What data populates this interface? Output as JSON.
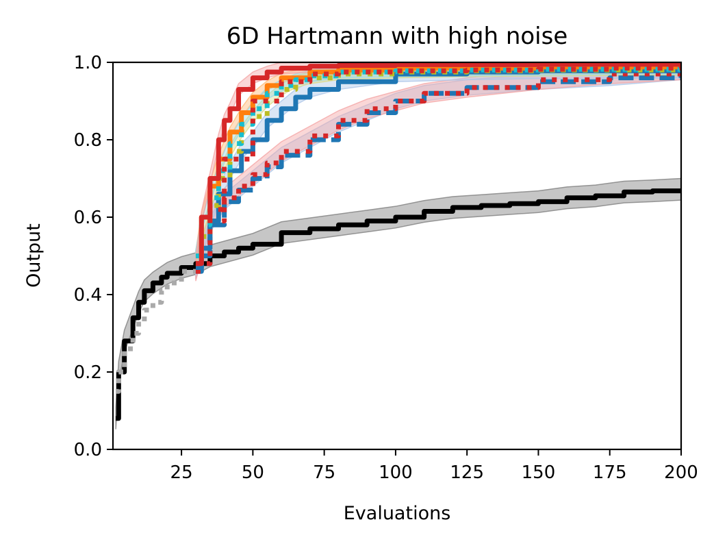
{
  "chart_data": {
    "type": "line",
    "title": "6D Hartmann with high noise",
    "xlabel": "Evaluations",
    "ylabel": "Output",
    "xlim": [
      1,
      200
    ],
    "ylim": [
      0.0,
      1.0
    ],
    "xticks": [
      25,
      50,
      75,
      100,
      125,
      150,
      175,
      200
    ],
    "yticks": [
      0.0,
      0.2,
      0.4,
      0.6,
      0.8,
      1.0
    ],
    "grid": false,
    "legend": "none",
    "series": [
      {
        "color": "#000000",
        "style": "solid",
        "band_color": "#808080",
        "x": [
          2,
          3,
          5,
          8,
          10,
          12,
          15,
          18,
          20,
          25,
          30,
          35,
          40,
          45,
          50,
          60,
          70,
          80,
          90,
          100,
          110,
          120,
          130,
          140,
          150,
          160,
          170,
          180,
          190,
          200
        ],
        "y": [
          0.08,
          0.2,
          0.28,
          0.34,
          0.38,
          0.41,
          0.43,
          0.445,
          0.455,
          0.47,
          0.48,
          0.5,
          0.51,
          0.52,
          0.53,
          0.56,
          0.57,
          0.58,
          0.59,
          0.6,
          0.615,
          0.625,
          0.63,
          0.635,
          0.64,
          0.65,
          0.655,
          0.665,
          0.668,
          0.672
        ],
        "band": 0.028
      },
      {
        "color": "#aaaaaa",
        "style": "dotted",
        "x": [
          2,
          3,
          5,
          8,
          10,
          12,
          15,
          18,
          20,
          25,
          30
        ],
        "y": [
          0.15,
          0.2,
          0.26,
          0.3,
          0.33,
          0.36,
          0.38,
          0.41,
          0.43,
          0.46,
          0.48
        ]
      },
      {
        "color": "#1f77b4",
        "style": "dashed",
        "band_color": "#aec7e8",
        "x": [
          30,
          32,
          35,
          40,
          45,
          50,
          55,
          60,
          70,
          80,
          90,
          100,
          110,
          125,
          150,
          175,
          200
        ],
        "y": [
          0.46,
          0.5,
          0.58,
          0.64,
          0.67,
          0.7,
          0.73,
          0.76,
          0.8,
          0.84,
          0.87,
          0.9,
          0.92,
          0.935,
          0.95,
          0.96,
          0.975
        ],
        "band": 0.02
      },
      {
        "color": "#d62728",
        "style": "dotted",
        "band_color": "#f4a6a6",
        "x": [
          30,
          32,
          35,
          40,
          45,
          50,
          55,
          60,
          70,
          80,
          90,
          100,
          110,
          125,
          150,
          175,
          200
        ],
        "y": [
          0.46,
          0.52,
          0.59,
          0.65,
          0.68,
          0.71,
          0.74,
          0.77,
          0.81,
          0.85,
          0.88,
          0.9,
          0.92,
          0.935,
          0.955,
          0.97,
          0.98
        ],
        "band": 0.025
      },
      {
        "color": "#1f77b4",
        "style": "solid",
        "band_color": "#aec7e8",
        "x": [
          30,
          32,
          35,
          38,
          42,
          46,
          50,
          55,
          60,
          65,
          70,
          80,
          100,
          125,
          150,
          200
        ],
        "y": [
          0.47,
          0.52,
          0.59,
          0.66,
          0.72,
          0.77,
          0.8,
          0.85,
          0.88,
          0.91,
          0.93,
          0.95,
          0.97,
          0.975,
          0.978,
          0.98
        ],
        "band": 0.02
      },
      {
        "color": "#bcbd22",
        "style": "dotted",
        "band_color": "#dbdb8d",
        "x": [
          30,
          32,
          35,
          38,
          42,
          46,
          50,
          55,
          60,
          65,
          70,
          80,
          100,
          125,
          150,
          200
        ],
        "y": [
          0.48,
          0.55,
          0.63,
          0.7,
          0.77,
          0.82,
          0.86,
          0.9,
          0.93,
          0.95,
          0.96,
          0.97,
          0.975,
          0.978,
          0.98,
          0.982
        ],
        "band": 0.015
      },
      {
        "color": "#ff7f0e",
        "style": "solid",
        "band_color": "#ffbb78",
        "x": [
          30,
          32,
          35,
          38,
          42,
          46,
          50,
          55,
          60,
          70,
          80,
          100,
          150,
          200
        ],
        "y": [
          0.5,
          0.6,
          0.68,
          0.75,
          0.82,
          0.87,
          0.91,
          0.94,
          0.96,
          0.975,
          0.98,
          0.985,
          0.988,
          0.99
        ],
        "band": 0.012
      },
      {
        "color": "#17becf",
        "style": "dotted",
        "band_color": "#9edae5",
        "x": [
          30,
          32,
          35,
          38,
          42,
          46,
          50,
          55,
          60,
          65,
          70,
          80,
          100,
          125,
          150,
          200
        ],
        "y": [
          0.5,
          0.58,
          0.65,
          0.72,
          0.79,
          0.84,
          0.88,
          0.92,
          0.94,
          0.955,
          0.965,
          0.975,
          0.978,
          0.98,
          0.982,
          0.985
        ],
        "band": 0.015
      },
      {
        "color": "#d62728",
        "style": "solid",
        "band_color": "#f4a6a6",
        "x": [
          30,
          32,
          35,
          38,
          40,
          42,
          45,
          50,
          55,
          60,
          70,
          80,
          100,
          150,
          200
        ],
        "y": [
          0.48,
          0.6,
          0.7,
          0.8,
          0.85,
          0.88,
          0.93,
          0.96,
          0.975,
          0.985,
          0.99,
          0.992,
          0.994,
          0.995,
          0.995
        ],
        "band": 0.015
      },
      {
        "color": "#d62728",
        "style": "dotted",
        "x": [
          30,
          35,
          40,
          50,
          60,
          70,
          80,
          100,
          125,
          150,
          175,
          200
        ],
        "y": [
          0.48,
          0.62,
          0.75,
          0.9,
          0.95,
          0.97,
          0.975,
          0.978,
          0.98,
          0.982,
          0.985,
          0.988
        ]
      }
    ]
  }
}
